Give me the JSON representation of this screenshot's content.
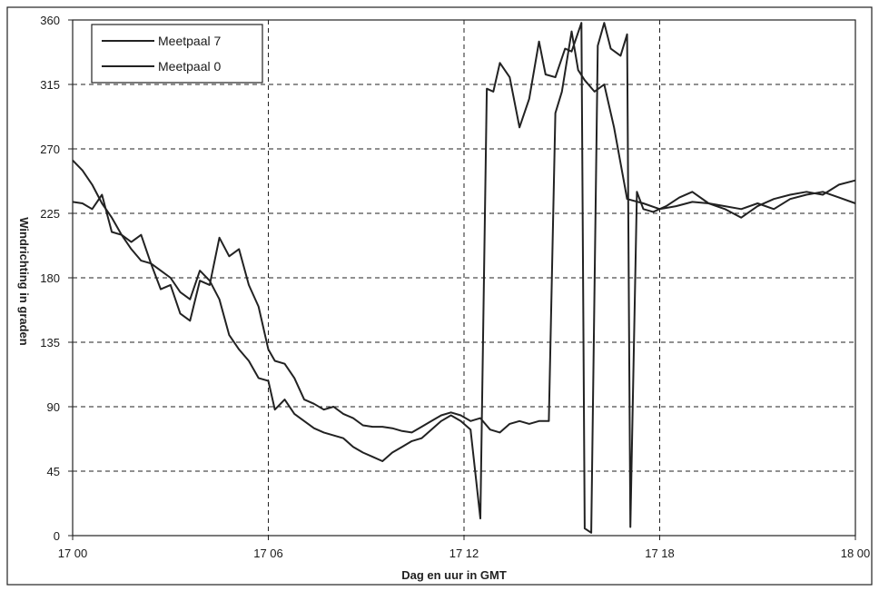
{
  "chart_data": {
    "type": "line",
    "xlabel": "Dag en uur in GMT",
    "ylabel": "Windrichting in graden",
    "ylim": [
      0,
      360
    ],
    "yticks": [
      0,
      45,
      90,
      135,
      180,
      225,
      270,
      315,
      360
    ],
    "xlim_hours": [
      0,
      24
    ],
    "xticks": [
      {
        "at": 0,
        "label": "17 00"
      },
      {
        "at": 6,
        "label": "17 06"
      },
      {
        "at": 12,
        "label": "17 12"
      },
      {
        "at": 18,
        "label": "17 18"
      },
      {
        "at": 24,
        "label": "18 00"
      }
    ],
    "grid": true,
    "legend_position": "top-left",
    "series": [
      {
        "name": "Meetpaal 7",
        "points": [
          [
            0.0,
            233
          ],
          [
            0.3,
            232
          ],
          [
            0.6,
            228
          ],
          [
            0.9,
            238
          ],
          [
            1.2,
            212
          ],
          [
            1.5,
            210
          ],
          [
            1.8,
            205
          ],
          [
            2.1,
            210
          ],
          [
            2.4,
            190
          ],
          [
            2.7,
            172
          ],
          [
            3.0,
            175
          ],
          [
            3.3,
            155
          ],
          [
            3.6,
            150
          ],
          [
            3.9,
            178
          ],
          [
            4.2,
            175
          ],
          [
            4.5,
            208
          ],
          [
            4.8,
            195
          ],
          [
            5.1,
            200
          ],
          [
            5.4,
            175
          ],
          [
            5.7,
            160
          ],
          [
            6.0,
            130
          ],
          [
            6.2,
            122
          ],
          [
            6.5,
            120
          ],
          [
            6.8,
            110
          ],
          [
            7.1,
            95
          ],
          [
            7.4,
            92
          ],
          [
            7.7,
            88
          ],
          [
            8.0,
            90
          ],
          [
            8.3,
            85
          ],
          [
            8.6,
            82
          ],
          [
            8.9,
            77
          ],
          [
            9.2,
            76
          ],
          [
            9.5,
            76
          ],
          [
            9.8,
            75
          ],
          [
            10.1,
            73
          ],
          [
            10.4,
            72
          ],
          [
            10.7,
            76
          ],
          [
            11.0,
            80
          ],
          [
            11.3,
            84
          ],
          [
            11.6,
            86
          ],
          [
            11.9,
            84
          ],
          [
            12.2,
            80
          ],
          [
            12.5,
            82
          ],
          [
            12.8,
            74
          ],
          [
            13.1,
            72
          ],
          [
            13.4,
            78
          ],
          [
            13.7,
            80
          ],
          [
            14.0,
            78
          ],
          [
            14.3,
            80
          ],
          [
            14.6,
            80
          ],
          [
            14.8,
            295
          ],
          [
            15.0,
            310
          ],
          [
            15.3,
            352
          ],
          [
            15.5,
            325
          ],
          [
            15.7,
            318
          ],
          [
            16.0,
            310
          ],
          [
            16.3,
            315
          ],
          [
            16.6,
            285
          ],
          [
            17.0,
            235
          ],
          [
            17.5,
            232
          ],
          [
            18.0,
            228
          ],
          [
            18.5,
            230
          ],
          [
            19.0,
            233
          ],
          [
            19.5,
            232
          ],
          [
            20.0,
            230
          ],
          [
            20.5,
            228
          ],
          [
            21.0,
            232
          ],
          [
            21.5,
            228
          ],
          [
            22.0,
            235
          ],
          [
            22.5,
            238
          ],
          [
            23.0,
            240
          ],
          [
            23.5,
            236
          ],
          [
            24.0,
            232
          ]
        ]
      },
      {
        "name": "Meetpaal 0",
        "points": [
          [
            0.0,
            262
          ],
          [
            0.3,
            255
          ],
          [
            0.6,
            245
          ],
          [
            0.9,
            232
          ],
          [
            1.2,
            222
          ],
          [
            1.5,
            210
          ],
          [
            1.8,
            200
          ],
          [
            2.1,
            192
          ],
          [
            2.4,
            190
          ],
          [
            2.7,
            185
          ],
          [
            3.0,
            180
          ],
          [
            3.3,
            170
          ],
          [
            3.6,
            165
          ],
          [
            3.9,
            185
          ],
          [
            4.2,
            178
          ],
          [
            4.5,
            165
          ],
          [
            4.8,
            140
          ],
          [
            5.1,
            130
          ],
          [
            5.4,
            122
          ],
          [
            5.7,
            110
          ],
          [
            6.0,
            108
          ],
          [
            6.2,
            88
          ],
          [
            6.5,
            95
          ],
          [
            6.8,
            85
          ],
          [
            7.1,
            80
          ],
          [
            7.4,
            75
          ],
          [
            7.7,
            72
          ],
          [
            8.0,
            70
          ],
          [
            8.3,
            68
          ],
          [
            8.6,
            62
          ],
          [
            8.9,
            58
          ],
          [
            9.2,
            55
          ],
          [
            9.5,
            52
          ],
          [
            9.8,
            58
          ],
          [
            10.1,
            62
          ],
          [
            10.4,
            66
          ],
          [
            10.7,
            68
          ],
          [
            11.0,
            74
          ],
          [
            11.3,
            80
          ],
          [
            11.6,
            84
          ],
          [
            11.9,
            80
          ],
          [
            12.2,
            74
          ],
          [
            12.5,
            12
          ],
          [
            12.7,
            312
          ],
          [
            12.9,
            310
          ],
          [
            13.1,
            330
          ],
          [
            13.4,
            320
          ],
          [
            13.7,
            285
          ],
          [
            14.0,
            305
          ],
          [
            14.3,
            345
          ],
          [
            14.5,
            322
          ],
          [
            14.8,
            320
          ],
          [
            15.1,
            340
          ],
          [
            15.3,
            338
          ],
          [
            15.6,
            358
          ],
          [
            15.7,
            5
          ],
          [
            15.9,
            2
          ],
          [
            16.1,
            342
          ],
          [
            16.3,
            358
          ],
          [
            16.5,
            340
          ],
          [
            16.8,
            335
          ],
          [
            17.0,
            350
          ],
          [
            17.1,
            6
          ],
          [
            17.3,
            240
          ],
          [
            17.5,
            228
          ],
          [
            17.8,
            226
          ],
          [
            18.2,
            230
          ],
          [
            18.6,
            236
          ],
          [
            19.0,
            240
          ],
          [
            19.5,
            232
          ],
          [
            20.0,
            228
          ],
          [
            20.5,
            222
          ],
          [
            21.0,
            230
          ],
          [
            21.5,
            235
          ],
          [
            22.0,
            238
          ],
          [
            22.5,
            240
          ],
          [
            23.0,
            238
          ],
          [
            23.5,
            245
          ],
          [
            24.0,
            248
          ]
        ]
      }
    ]
  }
}
